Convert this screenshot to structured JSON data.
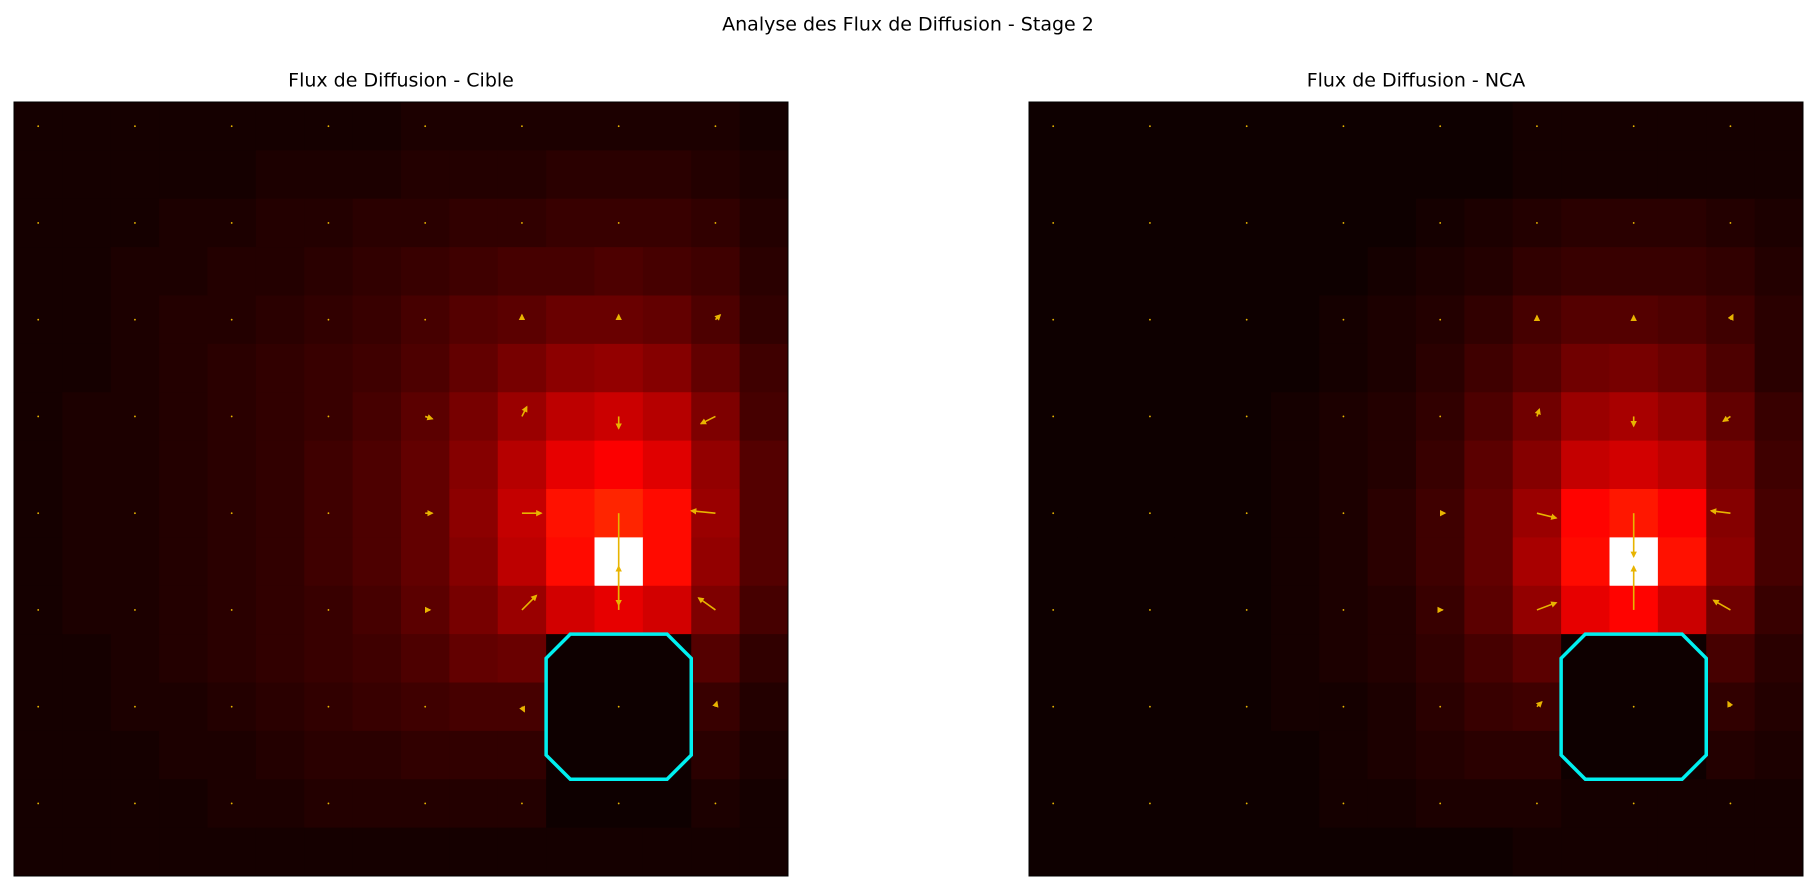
{
  "title": "Analyse des Flux de Diffusion - Stage 2",
  "chart_data": [
    {
      "type": "heatmap",
      "title": "Flux de Diffusion - Cible",
      "colormap": "hot",
      "clim": [
        0,
        1
      ],
      "values": [
        [
          0.03,
          0.03,
          0.03,
          0.03,
          0.03,
          0.03,
          0.03,
          0.03,
          0.04,
          0.04,
          0.04,
          0.04,
          0.04,
          0.04,
          0.04,
          0.03
        ],
        [
          0.03,
          0.03,
          0.03,
          0.03,
          0.03,
          0.04,
          0.04,
          0.04,
          0.05,
          0.05,
          0.05,
          0.06,
          0.06,
          0.06,
          0.05,
          0.04
        ],
        [
          0.03,
          0.03,
          0.03,
          0.04,
          0.04,
          0.05,
          0.05,
          0.06,
          0.06,
          0.07,
          0.07,
          0.08,
          0.08,
          0.08,
          0.07,
          0.05
        ],
        [
          0.03,
          0.03,
          0.04,
          0.04,
          0.05,
          0.05,
          0.06,
          0.07,
          0.08,
          0.09,
          0.1,
          0.1,
          0.11,
          0.1,
          0.09,
          0.06
        ],
        [
          0.03,
          0.03,
          0.04,
          0.05,
          0.05,
          0.06,
          0.07,
          0.08,
          0.1,
          0.12,
          0.13,
          0.15,
          0.15,
          0.14,
          0.11,
          0.07
        ],
        [
          0.03,
          0.03,
          0.04,
          0.05,
          0.06,
          0.07,
          0.08,
          0.09,
          0.11,
          0.14,
          0.17,
          0.2,
          0.21,
          0.19,
          0.14,
          0.09
        ],
        [
          0.03,
          0.04,
          0.04,
          0.05,
          0.06,
          0.07,
          0.08,
          0.1,
          0.13,
          0.17,
          0.22,
          0.27,
          0.29,
          0.26,
          0.18,
          0.1
        ],
        [
          0.03,
          0.04,
          0.04,
          0.05,
          0.06,
          0.07,
          0.09,
          0.11,
          0.14,
          0.19,
          0.26,
          0.33,
          0.36,
          0.32,
          0.21,
          0.12
        ],
        [
          0.03,
          0.04,
          0.04,
          0.05,
          0.06,
          0.07,
          0.09,
          0.11,
          0.14,
          0.2,
          0.28,
          0.39,
          0.42,
          0.38,
          0.22,
          0.12
        ],
        [
          0.03,
          0.04,
          0.04,
          0.05,
          0.06,
          0.07,
          0.09,
          0.11,
          0.14,
          0.19,
          0.27,
          0.38,
          1.0,
          0.38,
          0.21,
          0.12
        ],
        [
          0.03,
          0.04,
          0.04,
          0.05,
          0.06,
          0.07,
          0.08,
          0.1,
          0.13,
          0.17,
          0.22,
          0.3,
          0.33,
          0.3,
          0.18,
          0.1
        ],
        [
          0.03,
          0.03,
          0.04,
          0.05,
          0.06,
          0.07,
          0.08,
          0.09,
          0.11,
          0.14,
          0.15,
          0.02,
          0.02,
          0.02,
          0.12,
          0.07
        ],
        [
          0.03,
          0.03,
          0.04,
          0.04,
          0.05,
          0.06,
          0.07,
          0.08,
          0.09,
          0.1,
          0.1,
          0.02,
          0.02,
          0.02,
          0.08,
          0.05
        ],
        [
          0.03,
          0.03,
          0.03,
          0.04,
          0.04,
          0.05,
          0.06,
          0.06,
          0.07,
          0.07,
          0.07,
          0.02,
          0.02,
          0.02,
          0.06,
          0.04
        ],
        [
          0.03,
          0.03,
          0.03,
          0.03,
          0.04,
          0.04,
          0.05,
          0.05,
          0.05,
          0.05,
          0.05,
          0.02,
          0.02,
          0.02,
          0.04,
          0.03
        ],
        [
          0.03,
          0.03,
          0.03,
          0.03,
          0.03,
          0.03,
          0.03,
          0.03,
          0.03,
          0.03,
          0.03,
          0.03,
          0.03,
          0.03,
          0.03,
          0.03
        ]
      ],
      "quiver": {
        "color": "#e8b400",
        "u": [
          [
            0,
            0,
            0,
            0,
            0,
            0,
            0,
            0
          ],
          [
            0,
            0,
            0,
            0,
            0,
            0,
            0,
            0
          ],
          [
            0,
            0,
            0,
            0,
            0,
            0,
            0,
            0.1
          ],
          [
            0,
            0,
            0,
            0,
            0.15,
            0.1,
            0,
            -0.3
          ],
          [
            0,
            0,
            0,
            0,
            0.15,
            0.4,
            0,
            -0.5
          ],
          [
            0,
            0,
            0,
            0,
            0.1,
            0.3,
            0,
            -0.35
          ],
          [
            0,
            0,
            0,
            0,
            0,
            0.05,
            0,
            0.03
          ],
          [
            0,
            0,
            0,
            0,
            0,
            0,
            0,
            0
          ]
        ],
        "v": [
          [
            0,
            0,
            0,
            0,
            0,
            0,
            0,
            0
          ],
          [
            0,
            0,
            0,
            0,
            0,
            0,
            0,
            0
          ],
          [
            0,
            0,
            0,
            0,
            0,
            0.1,
            0.1,
            0.1
          ],
          [
            0,
            0,
            0,
            0,
            -0.05,
            0.2,
            -0.25,
            -0.15
          ],
          [
            0,
            0,
            0,
            0,
            0,
            0,
            -1.9,
            0.05
          ],
          [
            0,
            0,
            0,
            0,
            0,
            0.3,
            0.9,
            0.25
          ],
          [
            0,
            0,
            0,
            0,
            0,
            -0.1,
            0,
            0.1
          ],
          [
            0,
            0,
            0,
            0,
            0,
            0,
            0,
            0
          ]
        ]
      },
      "obstacle_color": "#00f0f0"
    },
    {
      "type": "heatmap",
      "title": "Flux de Diffusion - NCA",
      "colormap": "hot",
      "clim": [
        0,
        1
      ],
      "values": [
        [
          0.02,
          0.02,
          0.02,
          0.02,
          0.02,
          0.02,
          0.02,
          0.02,
          0.02,
          0.02,
          0.03,
          0.03,
          0.03,
          0.03,
          0.03,
          0.03
        ],
        [
          0.02,
          0.02,
          0.02,
          0.02,
          0.02,
          0.02,
          0.02,
          0.02,
          0.02,
          0.02,
          0.03,
          0.03,
          0.03,
          0.03,
          0.03,
          0.03
        ],
        [
          0.02,
          0.02,
          0.02,
          0.02,
          0.02,
          0.02,
          0.02,
          0.02,
          0.03,
          0.04,
          0.05,
          0.06,
          0.06,
          0.06,
          0.05,
          0.04
        ],
        [
          0.02,
          0.02,
          0.02,
          0.02,
          0.02,
          0.02,
          0.02,
          0.03,
          0.04,
          0.05,
          0.07,
          0.08,
          0.08,
          0.08,
          0.07,
          0.05
        ],
        [
          0.02,
          0.02,
          0.02,
          0.02,
          0.02,
          0.02,
          0.03,
          0.04,
          0.05,
          0.07,
          0.1,
          0.12,
          0.12,
          0.11,
          0.09,
          0.06
        ],
        [
          0.02,
          0.02,
          0.02,
          0.02,
          0.02,
          0.02,
          0.03,
          0.04,
          0.06,
          0.09,
          0.12,
          0.16,
          0.17,
          0.15,
          0.11,
          0.06
        ],
        [
          0.02,
          0.02,
          0.02,
          0.02,
          0.02,
          0.03,
          0.04,
          0.05,
          0.07,
          0.11,
          0.16,
          0.22,
          0.24,
          0.21,
          0.14,
          0.08
        ],
        [
          0.02,
          0.02,
          0.02,
          0.02,
          0.02,
          0.03,
          0.04,
          0.05,
          0.08,
          0.13,
          0.19,
          0.28,
          0.3,
          0.27,
          0.17,
          0.09
        ],
        [
          0.02,
          0.02,
          0.02,
          0.02,
          0.02,
          0.03,
          0.04,
          0.06,
          0.09,
          0.14,
          0.22,
          0.37,
          0.4,
          0.36,
          0.19,
          0.1
        ],
        [
          0.02,
          0.02,
          0.02,
          0.02,
          0.02,
          0.03,
          0.04,
          0.06,
          0.09,
          0.14,
          0.24,
          0.38,
          1.0,
          0.39,
          0.2,
          0.1
        ],
        [
          0.02,
          0.02,
          0.02,
          0.02,
          0.02,
          0.03,
          0.04,
          0.05,
          0.08,
          0.13,
          0.21,
          0.33,
          0.37,
          0.29,
          0.16,
          0.08
        ],
        [
          0.02,
          0.02,
          0.02,
          0.02,
          0.02,
          0.03,
          0.04,
          0.05,
          0.07,
          0.1,
          0.13,
          0.02,
          0.02,
          0.02,
          0.1,
          0.06
        ],
        [
          0.02,
          0.02,
          0.02,
          0.02,
          0.02,
          0.03,
          0.03,
          0.04,
          0.06,
          0.08,
          0.09,
          0.02,
          0.02,
          0.02,
          0.07,
          0.05
        ],
        [
          0.02,
          0.02,
          0.02,
          0.02,
          0.02,
          0.02,
          0.03,
          0.04,
          0.05,
          0.06,
          0.06,
          0.02,
          0.02,
          0.02,
          0.05,
          0.04
        ],
        [
          0.02,
          0.02,
          0.02,
          0.02,
          0.02,
          0.02,
          0.03,
          0.03,
          0.04,
          0.04,
          0.04,
          0.03,
          0.03,
          0.03,
          0.03,
          0.03
        ],
        [
          0.02,
          0.02,
          0.02,
          0.02,
          0.02,
          0.02,
          0.02,
          0.02,
          0.02,
          0.02,
          0.03,
          0.03,
          0.03,
          0.03,
          0.03,
          0.03
        ]
      ],
      "quiver": {
        "color": "#e8b400",
        "u": [
          [
            0,
            0,
            0,
            0,
            0,
            0,
            0,
            0
          ],
          [
            0,
            0,
            0,
            0,
            0,
            0,
            0,
            0
          ],
          [
            0,
            0,
            0,
            0,
            0,
            0,
            0,
            0.05
          ],
          [
            0,
            0,
            0,
            0,
            0,
            0.05,
            0,
            -0.15
          ],
          [
            0,
            0,
            0,
            0,
            0.1,
            0.4,
            0,
            -0.4
          ],
          [
            0,
            0,
            0,
            0,
            0.05,
            0.4,
            0,
            -0.35
          ],
          [
            0,
            0,
            0,
            0,
            0,
            0.1,
            0,
            -0.05
          ],
          [
            0,
            0,
            0,
            0,
            0,
            0,
            0,
            0
          ]
        ],
        "v": [
          [
            0,
            0,
            0,
            0,
            0,
            0,
            0,
            0
          ],
          [
            0,
            0,
            0,
            0,
            0,
            0,
            0,
            0
          ],
          [
            0,
            0,
            0,
            0,
            0,
            0.08,
            0.08,
            0.1
          ],
          [
            0,
            0,
            0,
            0,
            0,
            0.15,
            -0.2,
            -0.1
          ],
          [
            0,
            0,
            0,
            0,
            0,
            -0.1,
            -0.9,
            0.05
          ],
          [
            0,
            0,
            0,
            0,
            0,
            0.15,
            0.9,
            0.2
          ],
          [
            0,
            0,
            0,
            0,
            0,
            0.1,
            0,
            0.1
          ],
          [
            0,
            0,
            0,
            0,
            0,
            0,
            0,
            0
          ]
        ]
      },
      "obstacle_color": "#00f0f0"
    }
  ]
}
